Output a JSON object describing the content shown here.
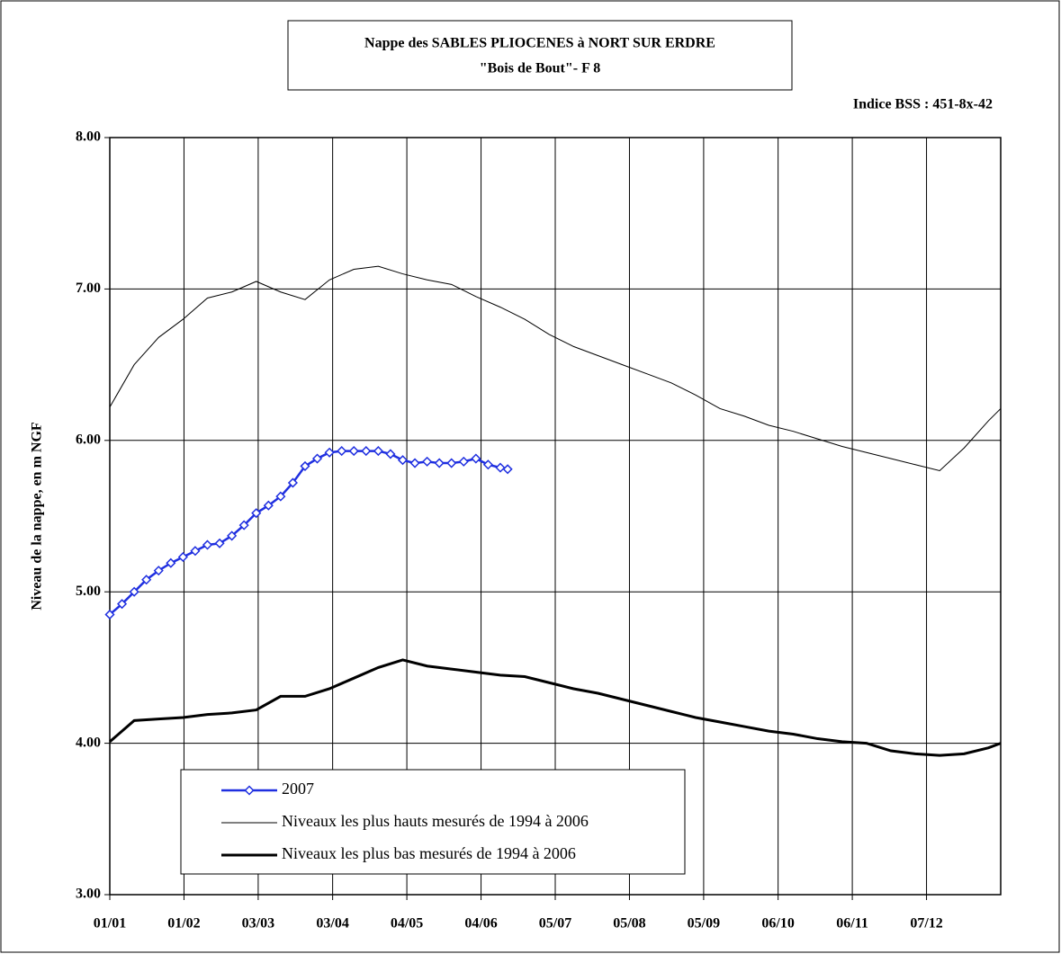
{
  "chart_data": {
    "type": "line",
    "title": "Nappe des SABLES PLIOCENES à NORT SUR ERDRE",
    "subtitle": "\"Bois de Bout\"-  F 8",
    "annotation": "Indice BSS : 451-8x-42",
    "y_label": "Niveau de la nappe, en m NGF",
    "xlim": [
      0,
      365
    ],
    "xticks": [
      {
        "value": 0,
        "label": "01/01"
      },
      {
        "value": 30.4,
        "label": "01/02"
      },
      {
        "value": 60.8,
        "label": "03/03"
      },
      {
        "value": 91.3,
        "label": "03/04"
      },
      {
        "value": 121.7,
        "label": "04/05"
      },
      {
        "value": 152.1,
        "label": "04/06"
      },
      {
        "value": 182.5,
        "label": "05/07"
      },
      {
        "value": 212.9,
        "label": "05/08"
      },
      {
        "value": 243.3,
        "label": "05/09"
      },
      {
        "value": 273.8,
        "label": "06/10"
      },
      {
        "value": 304.2,
        "label": "06/11"
      },
      {
        "value": 334.6,
        "label": "07/12"
      }
    ],
    "ylim": [
      3,
      8
    ],
    "yticks": [
      {
        "value": 3,
        "label": "3.00"
      },
      {
        "value": 4,
        "label": "4.00"
      },
      {
        "value": 5,
        "label": "5.00"
      },
      {
        "value": 6,
        "label": "6.00"
      },
      {
        "value": 7,
        "label": "7.00"
      },
      {
        "value": 8,
        "label": "8.00"
      }
    ],
    "grid": true,
    "series": [
      {
        "name": "2007",
        "color": "#1f2fe0",
        "width": 2.5,
        "marker": "diamond",
        "x": [
          0,
          5,
          10,
          15,
          20,
          25,
          30,
          35,
          40,
          45,
          50,
          55,
          60,
          65,
          70,
          75,
          80,
          85,
          90,
          95,
          100,
          105,
          110,
          115,
          120,
          125,
          130,
          135,
          140,
          145,
          150,
          155,
          160,
          163
        ],
        "values": [
          4.85,
          4.92,
          5.0,
          5.08,
          5.14,
          5.19,
          5.23,
          5.27,
          5.31,
          5.32,
          5.37,
          5.44,
          5.52,
          5.57,
          5.63,
          5.72,
          5.83,
          5.88,
          5.92,
          5.93,
          5.93,
          5.93,
          5.93,
          5.91,
          5.87,
          5.85,
          5.86,
          5.85,
          5.85,
          5.86,
          5.88,
          5.84,
          5.82,
          5.81
        ]
      },
      {
        "name": "Niveaux les plus hauts mesurés de 1994 à 2006",
        "color": "#000000",
        "width": 1,
        "x": [
          0,
          10,
          20,
          30,
          40,
          50,
          60,
          70,
          80,
          90,
          100,
          110,
          120,
          130,
          140,
          150,
          160,
          170,
          180,
          190,
          200,
          210,
          220,
          230,
          240,
          250,
          260,
          270,
          280,
          290,
          300,
          310,
          320,
          330,
          340,
          350,
          360,
          365
        ],
        "values": [
          6.22,
          6.5,
          6.68,
          6.8,
          6.94,
          6.98,
          7.05,
          6.98,
          6.93,
          7.06,
          7.13,
          7.15,
          7.1,
          7.06,
          7.03,
          6.95,
          6.88,
          6.8,
          6.7,
          6.62,
          6.56,
          6.5,
          6.44,
          6.38,
          6.3,
          6.21,
          6.16,
          6.1,
          6.06,
          6.01,
          5.96,
          5.92,
          5.88,
          5.84,
          5.8,
          5.95,
          6.13,
          6.21
        ]
      },
      {
        "name": "Niveaux les plus bas mesurés de 1994 à 2006",
        "color": "#000000",
        "width": 3,
        "x": [
          0,
          10,
          20,
          30,
          40,
          50,
          60,
          70,
          80,
          90,
          100,
          110,
          120,
          130,
          140,
          150,
          160,
          170,
          180,
          190,
          200,
          210,
          220,
          230,
          240,
          250,
          260,
          270,
          280,
          290,
          300,
          310,
          320,
          330,
          340,
          350,
          360,
          365
        ],
        "values": [
          4.01,
          4.15,
          4.16,
          4.17,
          4.19,
          4.2,
          4.22,
          4.31,
          4.31,
          4.36,
          4.43,
          4.5,
          4.55,
          4.51,
          4.49,
          4.47,
          4.45,
          4.44,
          4.4,
          4.36,
          4.33,
          4.29,
          4.25,
          4.21,
          4.17,
          4.14,
          4.11,
          4.08,
          4.06,
          4.03,
          4.01,
          4.0,
          3.95,
          3.93,
          3.92,
          3.93,
          3.97,
          4.0
        ]
      }
    ]
  }
}
